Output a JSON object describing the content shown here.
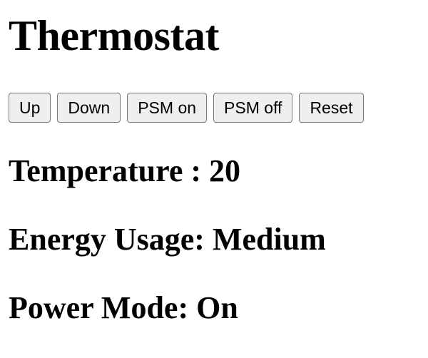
{
  "page": {
    "title": "Thermostat"
  },
  "controls": {
    "up_label": "Up",
    "down_label": "Down",
    "psm_on_label": "PSM on",
    "psm_off_label": "PSM off",
    "reset_label": "Reset"
  },
  "status": {
    "temperature_text": "Temperature : 20",
    "energy_usage_text": "Energy Usage: Medium",
    "power_mode_text": "Power Mode: On"
  }
}
